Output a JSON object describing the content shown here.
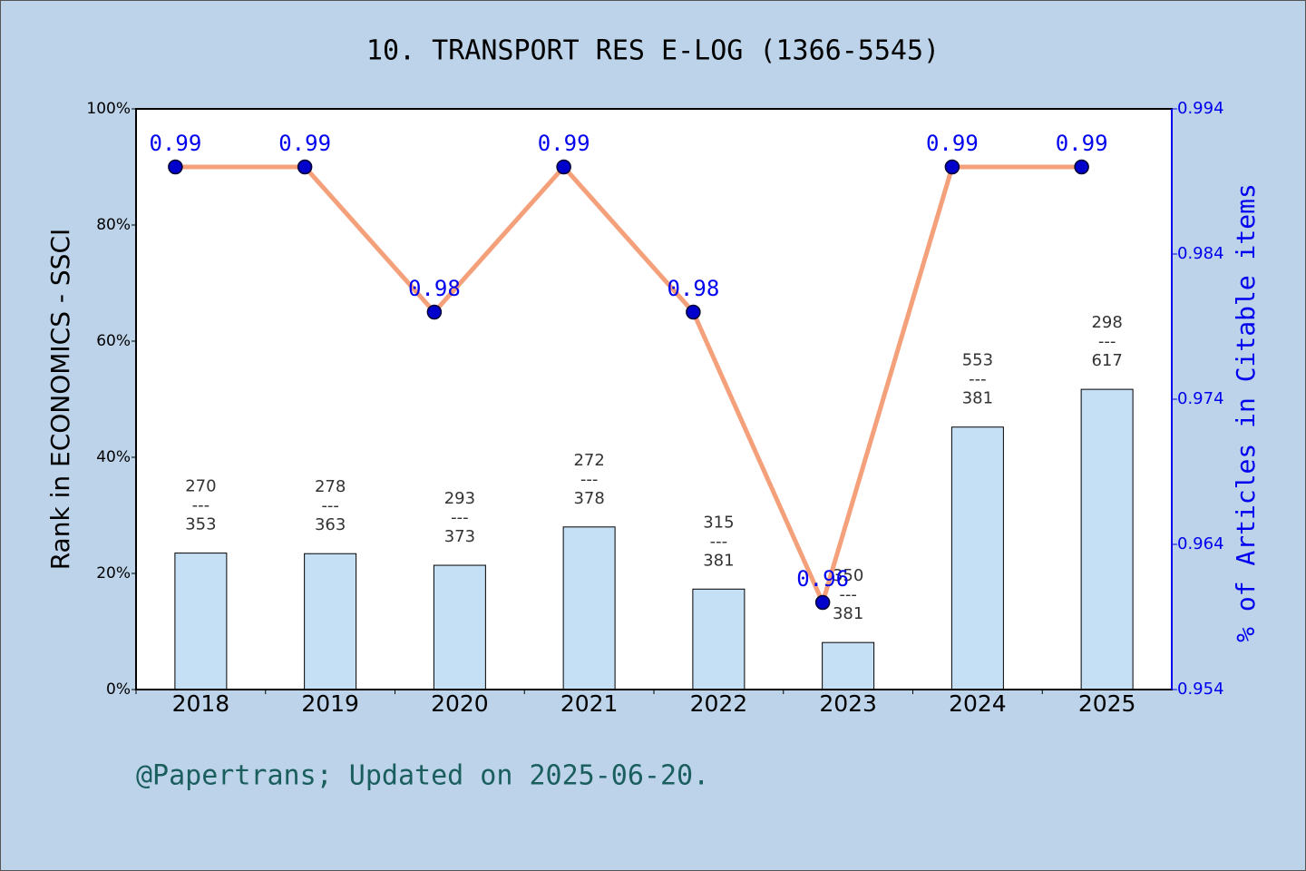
{
  "chart_data": {
    "type": "combo",
    "title": "10. TRANSPORT RES E-LOG (1366-5545)",
    "ylabel": "Rank in ECONOMICS - SSCI",
    "y2label": "% of Articles in Citable items",
    "footer": "@Papertrans; Updated on 2025-06-20.",
    "categories": [
      "2018",
      "2019",
      "2020",
      "2021",
      "2022",
      "2023",
      "2024",
      "2025"
    ],
    "ylim": [
      0,
      100
    ],
    "yticks": [
      {
        "value": 0,
        "label": "0%"
      },
      {
        "value": 20,
        "label": "20%"
      },
      {
        "value": 40,
        "label": "40%"
      },
      {
        "value": 60,
        "label": "60%"
      },
      {
        "value": 80,
        "label": "80%"
      },
      {
        "value": 100,
        "label": "100%"
      }
    ],
    "y2lim": [
      0.954,
      0.994
    ],
    "y2ticks": [
      0.954,
      0.964,
      0.974,
      0.984,
      0.994
    ],
    "separator": "---",
    "series": [
      {
        "type": "bar",
        "color": "#c5dff5",
        "values": [
          23.5,
          23.4,
          21.4,
          28.0,
          17.3,
          8.1,
          45.2,
          51.7
        ],
        "annotations": [
          {
            "top": "270",
            "bottom": "353"
          },
          {
            "top": "278",
            "bottom": "363"
          },
          {
            "top": "293",
            "bottom": "373"
          },
          {
            "top": "272",
            "bottom": "378"
          },
          {
            "top": "315",
            "bottom": "381"
          },
          {
            "top": "350",
            "bottom": "381"
          },
          {
            "top": "553",
            "bottom": "381"
          },
          {
            "top": "298",
            "bottom": "617"
          }
        ]
      },
      {
        "type": "line",
        "axis": "y2",
        "color": "#f4a07a",
        "marker_color": "#0000cc",
        "values": [
          0.99,
          0.99,
          0.98,
          0.99,
          0.98,
          0.96,
          0.99,
          0.99
        ]
      }
    ]
  }
}
